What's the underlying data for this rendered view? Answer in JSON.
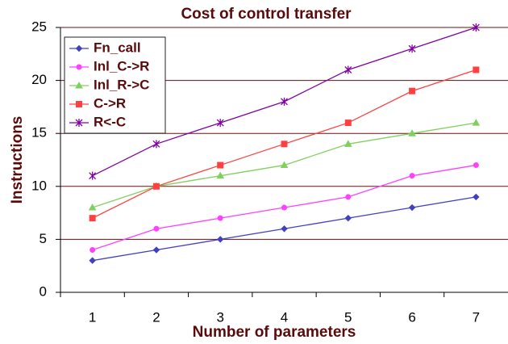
{
  "chart_data": {
    "type": "line",
    "title": "Cost of control transfer",
    "x_label": "Number of parameters",
    "y_label": "Instructions",
    "categories": [
      "1",
      "2",
      "3",
      "4",
      "5",
      "6",
      "7"
    ],
    "series": [
      {
        "name": "Fn_call",
        "color": "#4040c0",
        "marker": "diamond",
        "values": [
          3,
          4,
          5,
          6,
          7,
          8,
          9
        ]
      },
      {
        "name": "Inl_C->R",
        "color": "#ff40ff",
        "marker": "circle",
        "values": [
          4,
          6,
          7,
          8,
          9,
          11,
          12
        ]
      },
      {
        "name": "Inl_R->C",
        "color": "#80d060",
        "marker": "triangle",
        "values": [
          8,
          10,
          11,
          12,
          14,
          15,
          16
        ]
      },
      {
        "name": "C->R",
        "color": "#ff4040",
        "marker": "square",
        "values": [
          7,
          10,
          12,
          14,
          16,
          19,
          21
        ]
      },
      {
        "name": "R<-C",
        "color": "#8000a0",
        "marker": "star",
        "values": [
          11,
          14,
          16,
          18,
          21,
          23,
          25
        ]
      }
    ],
    "ylim": [
      0,
      25
    ],
    "yticks": [
      0,
      5,
      10,
      15,
      20,
      25
    ],
    "grid": true,
    "legend": "upper left"
  }
}
